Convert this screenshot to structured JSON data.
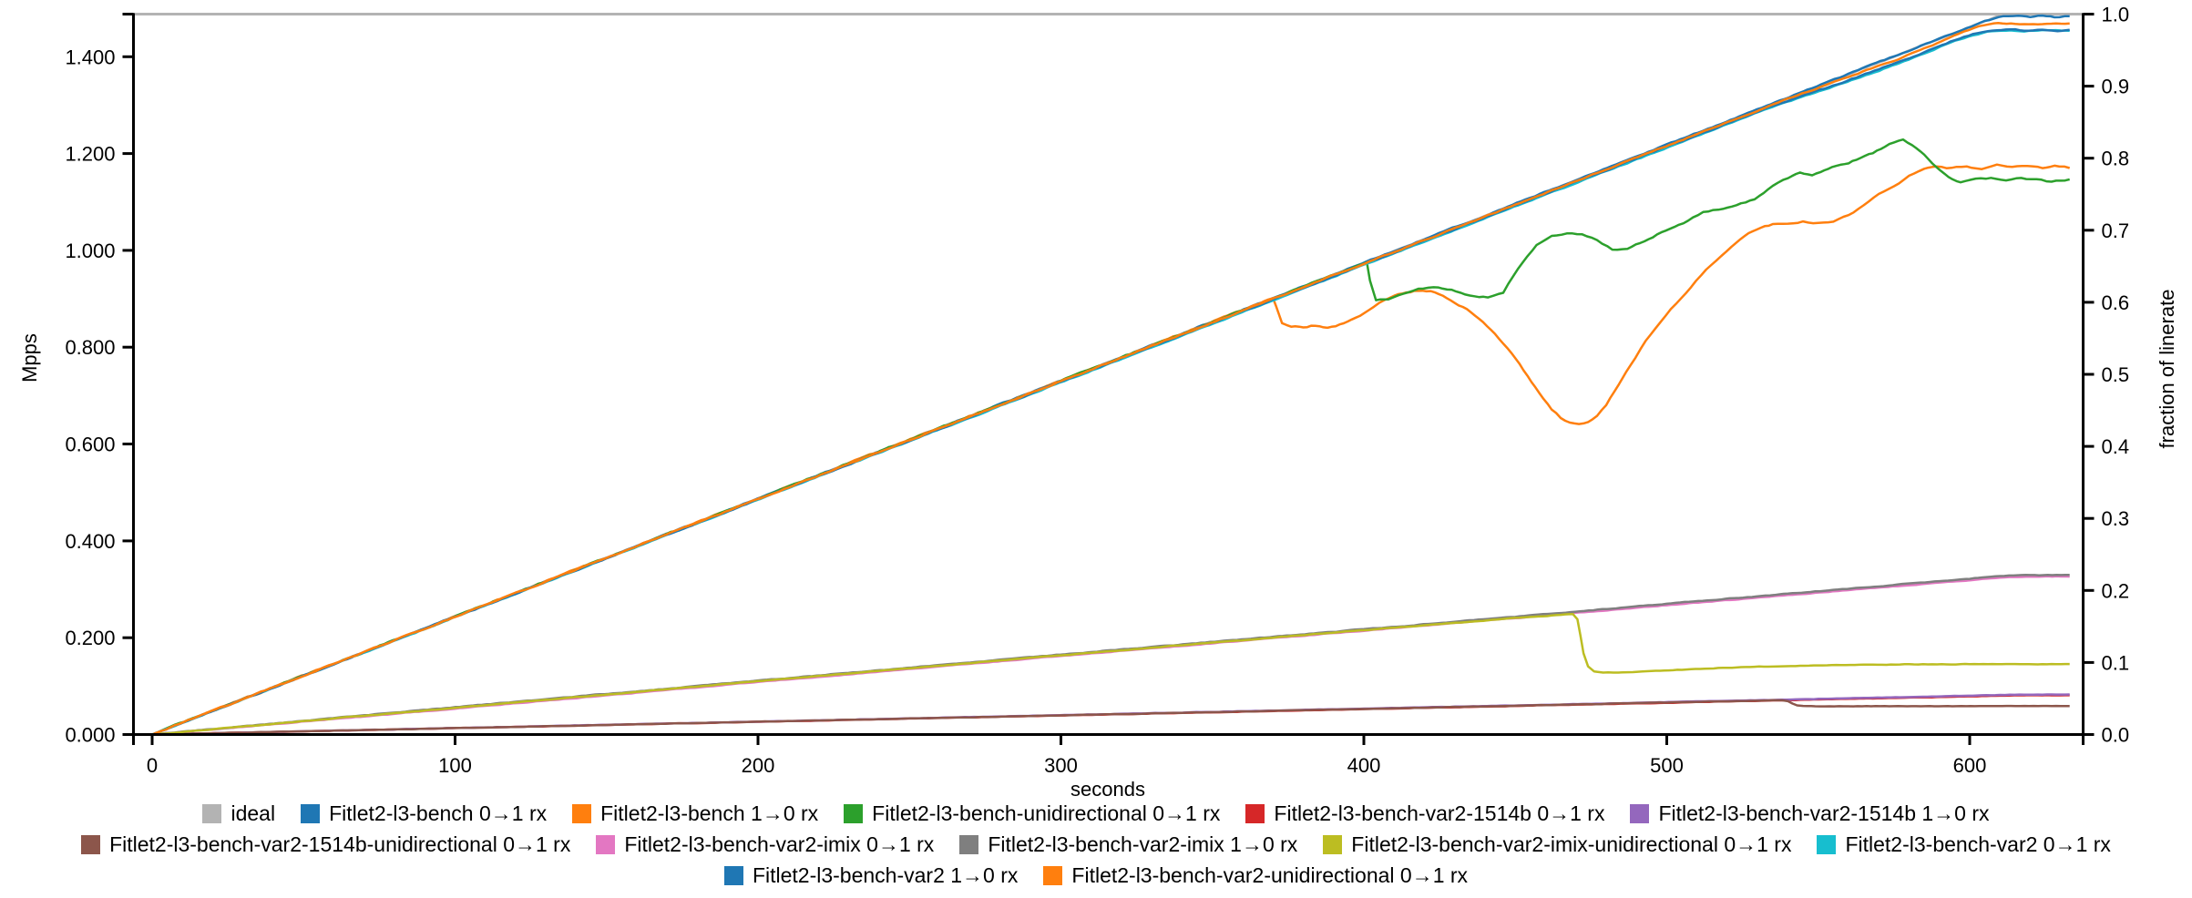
{
  "page": {
    "background": "#ffffff"
  },
  "chart_data": {
    "type": "line",
    "title": "",
    "xlabel": "seconds",
    "ylabel_left": "Mpps",
    "ylabel_right": "fraction of linerate",
    "x_range": [
      0,
      637
    ],
    "x_ticks": [
      0,
      100,
      200,
      300,
      400,
      500,
      600
    ],
    "y_left_tick_labels": [
      "0.000",
      "0.200",
      "0.400",
      "0.600",
      "0.800",
      "1.000",
      "1.200",
      "1.400"
    ],
    "y_left_tick_values_mpps": [
      0.0,
      0.2,
      0.4,
      0.6,
      0.8,
      1.0,
      1.2,
      1.4
    ],
    "y_left_top_mpps": 1.488,
    "y_right_tick_labels": [
      "0.0",
      "0.1",
      "0.2",
      "0.3",
      "0.4",
      "0.5",
      "0.6",
      "0.7",
      "0.8",
      "0.9",
      "1.0"
    ],
    "y_right_range": [
      0,
      1
    ],
    "grid": false,
    "legend_position": "bottom",
    "axis_color": "#000000",
    "top_border_color": "#b3b3b3",
    "unit_note": "values stored as fraction of linerate; Mpps = fraction x 1.488",
    "series": [
      {
        "name": "ideal",
        "color": "#b3b3b3",
        "amp": 0.0008,
        "points": [
          [
            0,
            0
          ],
          [
            611,
            1.0
          ],
          [
            636,
            1.0
          ]
        ]
      },
      {
        "name": "Fitlet2-l3-bench 0→1 rx",
        "color": "#1f77b4",
        "amp": 0.0013,
        "points": [
          [
            0,
            0
          ],
          [
            605,
            0.9905
          ],
          [
            611,
            0.997
          ],
          [
            616,
            0.9985
          ],
          [
            620,
            0.996
          ],
          [
            624,
            0.998
          ],
          [
            628,
            0.9955
          ],
          [
            633,
            0.9975
          ]
        ]
      },
      {
        "name": "Fitlet2-l3-bench 1→0 rx",
        "color": "#ff7f0e",
        "amp": 0.0018,
        "points": [
          [
            0,
            0
          ],
          [
            370,
            0.6055
          ],
          [
            371,
            0.595
          ],
          [
            373,
            0.572
          ],
          [
            376,
            0.567
          ],
          [
            380,
            0.566
          ],
          [
            384,
            0.568
          ],
          [
            388,
            0.565
          ],
          [
            392,
            0.569
          ],
          [
            396,
            0.576
          ],
          [
            400,
            0.585
          ],
          [
            405,
            0.6
          ],
          [
            410,
            0.61
          ],
          [
            414,
            0.6145
          ],
          [
            418,
            0.6165
          ],
          [
            422,
            0.615
          ],
          [
            426,
            0.609
          ],
          [
            430,
            0.6
          ],
          [
            434,
            0.59
          ],
          [
            438,
            0.578
          ],
          [
            442,
            0.562
          ],
          [
            446,
            0.543
          ],
          [
            450,
            0.522
          ],
          [
            454,
            0.498
          ],
          [
            458,
            0.474
          ],
          [
            462,
            0.452
          ],
          [
            465,
            0.44
          ],
          [
            468,
            0.4335
          ],
          [
            471,
            0.4315
          ],
          [
            474,
            0.434
          ],
          [
            477,
            0.443
          ],
          [
            480,
            0.458
          ],
          [
            484,
            0.486
          ],
          [
            488,
            0.513
          ],
          [
            493,
            0.546
          ],
          [
            498,
            0.573
          ],
          [
            503,
            0.598
          ],
          [
            508,
            0.622
          ],
          [
            513,
            0.645
          ],
          [
            518,
            0.664
          ],
          [
            523,
            0.683
          ],
          [
            527,
            0.697
          ],
          [
            531,
            0.704
          ],
          [
            535,
            0.708
          ],
          [
            540,
            0.71
          ],
          [
            545,
            0.712
          ],
          [
            550,
            0.71
          ],
          [
            555,
            0.713
          ],
          [
            560,
            0.722
          ],
          [
            565,
            0.734
          ],
          [
            570,
            0.749
          ],
          [
            575,
            0.762
          ],
          [
            580,
            0.775
          ],
          [
            585,
            0.784
          ],
          [
            589,
            0.788
          ],
          [
            594,
            0.786
          ],
          [
            599,
            0.789
          ],
          [
            604,
            0.785
          ],
          [
            609,
            0.79
          ],
          [
            614,
            0.787
          ],
          [
            619,
            0.789
          ],
          [
            624,
            0.786
          ],
          [
            628,
            0.79
          ],
          [
            633,
            0.787
          ]
        ]
      },
      {
        "name": "Fitlet2-l3-bench-unidirectional 0→1 rx",
        "color": "#2ca02c",
        "amp": 0.0018,
        "points": [
          [
            0,
            0
          ],
          [
            401,
            0.656
          ],
          [
            402,
            0.63
          ],
          [
            404,
            0.603
          ],
          [
            408,
            0.604
          ],
          [
            413,
            0.611
          ],
          [
            418,
            0.619
          ],
          [
            423,
            0.6205
          ],
          [
            429,
            0.617
          ],
          [
            435,
            0.61
          ],
          [
            441,
            0.607
          ],
          [
            446,
            0.613
          ],
          [
            451,
            0.648
          ],
          [
            457,
            0.68
          ],
          [
            462,
            0.693
          ],
          [
            467,
            0.696
          ],
          [
            472,
            0.6945
          ],
          [
            477,
            0.686
          ],
          [
            482,
            0.673
          ],
          [
            487,
            0.674
          ],
          [
            494,
            0.688
          ],
          [
            501,
            0.703
          ],
          [
            507,
            0.713
          ],
          [
            512,
            0.7255
          ],
          [
            517,
            0.729
          ],
          [
            523,
            0.734
          ],
          [
            529,
            0.743
          ],
          [
            535,
            0.761
          ],
          [
            540,
            0.772
          ],
          [
            544,
            0.78
          ],
          [
            548,
            0.777
          ],
          [
            552,
            0.783
          ],
          [
            556,
            0.79
          ],
          [
            560,
            0.793
          ],
          [
            564,
            0.801
          ],
          [
            568,
            0.807
          ],
          [
            572,
            0.815
          ],
          [
            575,
            0.822
          ],
          [
            578,
            0.825
          ],
          [
            581,
            0.819
          ],
          [
            585,
            0.804
          ],
          [
            589,
            0.787
          ],
          [
            593,
            0.773
          ],
          [
            597,
            0.767
          ],
          [
            602,
            0.771
          ],
          [
            607,
            0.772
          ],
          [
            612,
            0.768
          ],
          [
            617,
            0.772
          ],
          [
            622,
            0.77
          ],
          [
            627,
            0.767
          ],
          [
            633,
            0.77
          ]
        ]
      },
      {
        "name": "Fitlet2-l3-bench-var2-1514b 0→1 rx",
        "color": "#d62728",
        "amp": 0.0004,
        "points": [
          [
            0,
            0
          ],
          [
            610,
            0.0538
          ],
          [
            618,
            0.0545
          ],
          [
            633,
            0.0547
          ]
        ]
      },
      {
        "name": "Fitlet2-l3-bench-var2-1514b 1→0 rx",
        "color": "#9467bd",
        "amp": 0.0004,
        "points": [
          [
            0,
            0
          ],
          [
            610,
            0.0548
          ],
          [
            618,
            0.0555
          ],
          [
            633,
            0.0557
          ]
        ]
      },
      {
        "name": "Fitlet2-l3-bench-var2-1514b-unidirectional 0→1 rx",
        "color": "#8c564b",
        "amp": 0.0004,
        "points": [
          [
            0,
            0
          ],
          [
            538,
            0.0478
          ],
          [
            540,
            0.0462
          ],
          [
            541.5,
            0.043
          ],
          [
            543,
            0.0405
          ],
          [
            545,
            0.0396
          ],
          [
            549,
            0.0392
          ],
          [
            560,
            0.0393
          ],
          [
            633,
            0.0395
          ]
        ]
      },
      {
        "name": "Fitlet2-l3-bench-var2-imix 0→1 rx",
        "color": "#e377c2",
        "amp": 0.0007,
        "points": [
          [
            0,
            0
          ],
          [
            100,
            0.036
          ],
          [
            200,
            0.0728
          ],
          [
            300,
            0.109
          ],
          [
            400,
            0.1442
          ],
          [
            450,
            0.1615
          ],
          [
            500,
            0.1795
          ],
          [
            540,
            0.1935
          ],
          [
            570,
            0.204
          ],
          [
            590,
            0.211
          ],
          [
            600,
            0.2143
          ],
          [
            607,
            0.217
          ],
          [
            613,
            0.2185
          ],
          [
            620,
            0.2192
          ],
          [
            633,
            0.2195
          ]
        ]
      },
      {
        "name": "Fitlet2-l3-bench-var2-imix 1→0 rx",
        "color": "#7f7f7f",
        "amp": 0.0007,
        "points": [
          [
            0,
            0
          ],
          [
            100,
            0.038
          ],
          [
            200,
            0.0748
          ],
          [
            300,
            0.111
          ],
          [
            400,
            0.1462
          ],
          [
            450,
            0.1635
          ],
          [
            500,
            0.1815
          ],
          [
            540,
            0.1955
          ],
          [
            570,
            0.206
          ],
          [
            590,
            0.213
          ],
          [
            600,
            0.2163
          ],
          [
            607,
            0.219
          ],
          [
            613,
            0.2205
          ],
          [
            620,
            0.2212
          ],
          [
            633,
            0.2215
          ]
        ]
      },
      {
        "name": "Fitlet2-l3-bench-var2-imix-unidirectional 0→1 rx",
        "color": "#bcbd22",
        "amp": 0.0006,
        "points": [
          [
            0,
            0
          ],
          [
            100,
            0.037
          ],
          [
            200,
            0.074
          ],
          [
            300,
            0.11
          ],
          [
            400,
            0.145
          ],
          [
            450,
            0.1615
          ],
          [
            465,
            0.1662
          ],
          [
            469,
            0.1672
          ],
          [
            470.5,
            0.16
          ],
          [
            471.5,
            0.138
          ],
          [
            472.5,
            0.113
          ],
          [
            474,
            0.095
          ],
          [
            476,
            0.088
          ],
          [
            479,
            0.0862
          ],
          [
            484,
            0.086
          ],
          [
            492,
            0.0874
          ],
          [
            505,
            0.09
          ],
          [
            520,
            0.0928
          ],
          [
            535,
            0.0947
          ],
          [
            550,
            0.096
          ],
          [
            565,
            0.0969
          ],
          [
            580,
            0.0974
          ],
          [
            600,
            0.0977
          ],
          [
            633,
            0.0978
          ]
        ]
      },
      {
        "name": "Fitlet2-l3-bench-var2 0→1 rx",
        "color": "#17becf",
        "amp": 0.001,
        "points": [
          [
            0,
            0
          ],
          [
            535,
            0.8715
          ],
          [
            555,
            0.8995
          ],
          [
            570,
            0.9215
          ],
          [
            580,
            0.9375
          ],
          [
            588,
            0.9505
          ],
          [
            595,
            0.9625
          ],
          [
            601,
            0.9705
          ],
          [
            606,
            0.9755
          ],
          [
            612,
            0.9775
          ],
          [
            618,
            0.976
          ],
          [
            624,
            0.9775
          ],
          [
            633,
            0.977
          ]
        ]
      },
      {
        "name": "Fitlet2-l3-bench-var2 1→0 rx",
        "color": "#1f77b4",
        "amp": 0.0013,
        "points": [
          [
            0,
            0
          ],
          [
            535,
            0.873
          ],
          [
            555,
            0.901
          ],
          [
            570,
            0.923
          ],
          [
            580,
            0.939
          ],
          [
            588,
            0.952
          ],
          [
            595,
            0.964
          ],
          [
            601,
            0.972
          ],
          [
            606,
            0.977
          ],
          [
            612,
            0.979
          ],
          [
            618,
            0.9775
          ],
          [
            624,
            0.979
          ],
          [
            629,
            0.977
          ],
          [
            633,
            0.9785
          ]
        ]
      },
      {
        "name": "Fitlet2-l3-bench-var2-unidirectional 0→1 rx",
        "color": "#ff7f0e",
        "amp": 0.0013,
        "points": [
          [
            0,
            0
          ],
          [
            540,
            0.8825
          ],
          [
            560,
            0.913
          ],
          [
            575,
            0.9355
          ],
          [
            585,
            0.952
          ],
          [
            592,
            0.965
          ],
          [
            598,
            0.976
          ],
          [
            603,
            0.983
          ],
          [
            608,
            0.9865
          ],
          [
            615,
            0.987
          ],
          [
            621,
            0.9855
          ],
          [
            627,
            0.9875
          ],
          [
            633,
            0.9865
          ]
        ]
      }
    ]
  },
  "legend": {
    "row_breaks": [
      6,
      11
    ]
  }
}
